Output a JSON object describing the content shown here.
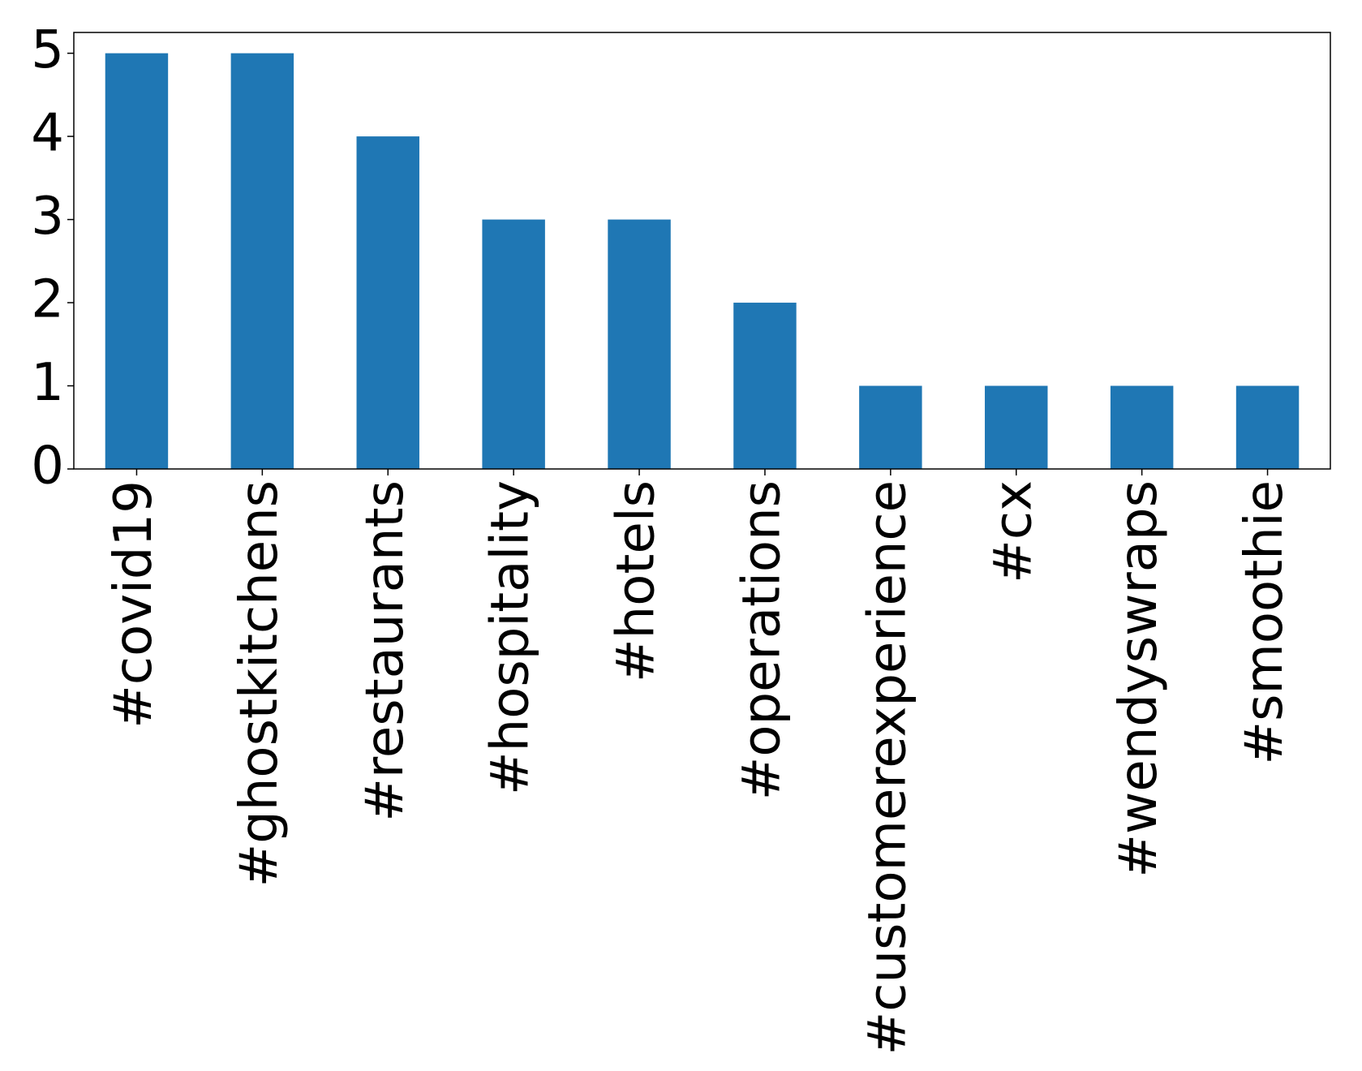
{
  "chart_data": {
    "type": "bar",
    "categories": [
      "#covid19",
      "#ghostkitchens",
      "#restaurants",
      "#hospitality",
      "#hotels",
      "#operations",
      "#customerexperience",
      "#cx",
      "#wendyswraps",
      "#smoothie"
    ],
    "values": [
      5,
      5,
      4,
      3,
      3,
      2,
      1,
      1,
      1,
      1
    ],
    "color": "#1f77b4",
    "ylim": [
      0,
      5.25
    ],
    "yticks": [
      0,
      1,
      2,
      3,
      4,
      5
    ],
    "grid": false
  }
}
